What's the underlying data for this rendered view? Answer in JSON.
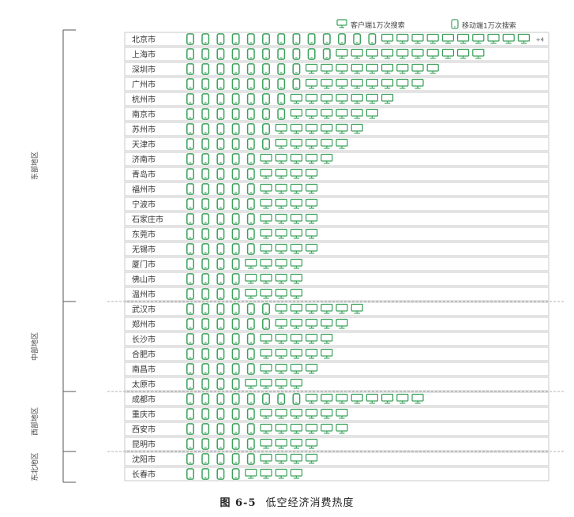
{
  "chart_data": {
    "type": "pictograph",
    "caption_number": "图 6-5",
    "title": "低空经济消费热度",
    "legend": [
      {
        "key": "desktop",
        "label": "客户端1万次搜索"
      },
      {
        "key": "mobile",
        "label": "移动端1万次搜索"
      }
    ],
    "colors": {
      "icon": "#3aa05a",
      "row_border": "#c9c9c9",
      "region_line": "#555555",
      "divider": "#999999"
    },
    "overflow_label": "+4",
    "regions": [
      {
        "name": "东部地区",
        "cities": [
          {
            "city": "北京市",
            "mobile": 13,
            "desktop": 14
          },
          {
            "city": "上海市",
            "mobile": 10,
            "desktop": 10
          },
          {
            "city": "深圳市",
            "mobile": 8,
            "desktop": 9
          },
          {
            "city": "广州市",
            "mobile": 8,
            "desktop": 8
          },
          {
            "city": "杭州市",
            "mobile": 7,
            "desktop": 7
          },
          {
            "city": "南京市",
            "mobile": 7,
            "desktop": 6
          },
          {
            "city": "苏州市",
            "mobile": 6,
            "desktop": 6
          },
          {
            "city": "天津市",
            "mobile": 6,
            "desktop": 5
          },
          {
            "city": "济南市",
            "mobile": 5,
            "desktop": 5
          },
          {
            "city": "青岛市",
            "mobile": 5,
            "desktop": 4
          },
          {
            "city": "福州市",
            "mobile": 5,
            "desktop": 4
          },
          {
            "city": "宁波市",
            "mobile": 5,
            "desktop": 4
          },
          {
            "city": "石家庄市",
            "mobile": 5,
            "desktop": 4
          },
          {
            "city": "东莞市",
            "mobile": 5,
            "desktop": 4
          },
          {
            "city": "无锡市",
            "mobile": 5,
            "desktop": 4
          },
          {
            "city": "厦门市",
            "mobile": 4,
            "desktop": 4
          },
          {
            "city": "佛山市",
            "mobile": 4,
            "desktop": 4
          },
          {
            "city": "温州市",
            "mobile": 4,
            "desktop": 4
          }
        ]
      },
      {
        "name": "中部地区",
        "cities": [
          {
            "city": "武汉市",
            "mobile": 6,
            "desktop": 6
          },
          {
            "city": "郑州市",
            "mobile": 6,
            "desktop": 5
          },
          {
            "city": "长沙市",
            "mobile": 5,
            "desktop": 5
          },
          {
            "city": "合肥市",
            "mobile": 5,
            "desktop": 5
          },
          {
            "city": "南昌市",
            "mobile": 5,
            "desktop": 4
          },
          {
            "city": "太原市",
            "mobile": 4,
            "desktop": 4
          }
        ]
      },
      {
        "name": "西部地区",
        "cities": [
          {
            "city": "成都市",
            "mobile": 8,
            "desktop": 8
          },
          {
            "city": "重庆市",
            "mobile": 5,
            "desktop": 6
          },
          {
            "city": "西安市",
            "mobile": 5,
            "desktop": 6
          },
          {
            "city": "昆明市",
            "mobile": 5,
            "desktop": 4
          }
        ]
      },
      {
        "name": "东北地区",
        "cities": [
          {
            "city": "沈阳市",
            "mobile": 5,
            "desktop": 4
          },
          {
            "city": "长春市",
            "mobile": 4,
            "desktop": 4
          }
        ]
      }
    ]
  }
}
